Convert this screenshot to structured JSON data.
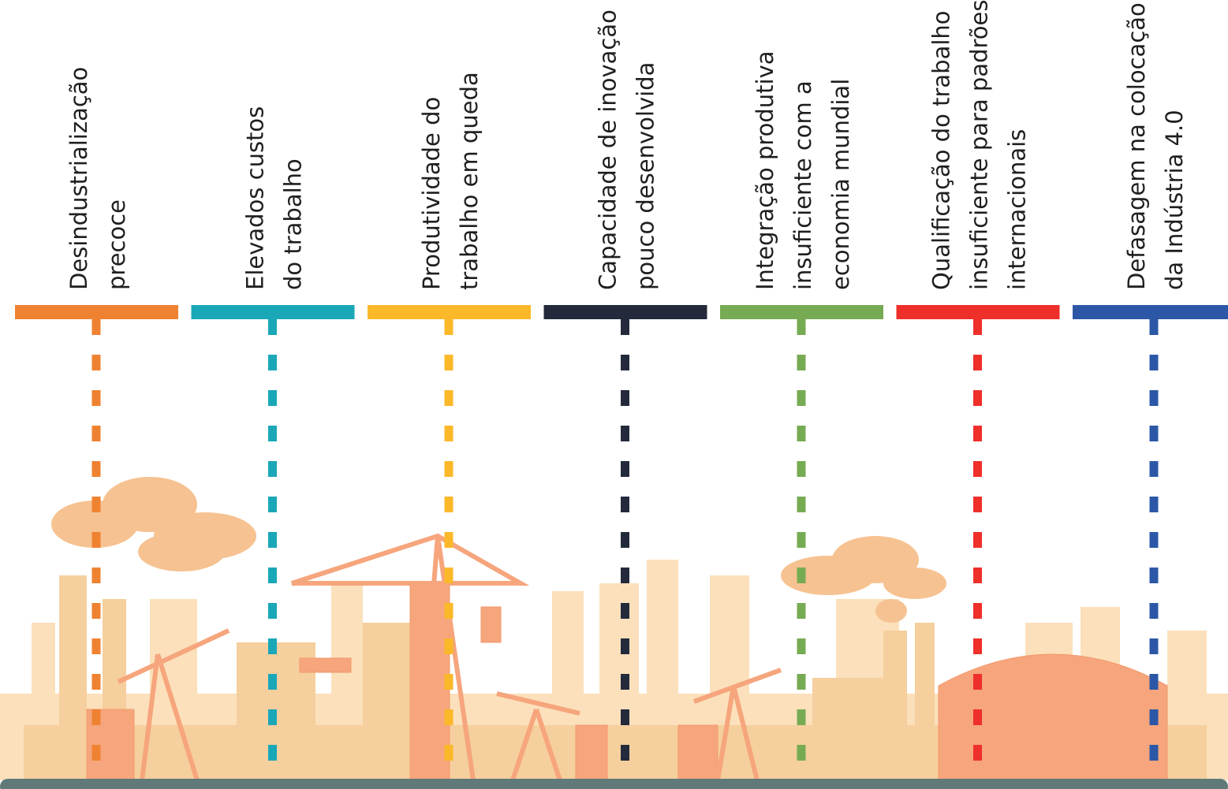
{
  "items": [
    {
      "lines": [
        "Desindustrialização",
        "precoce"
      ],
      "color": "#ef8231"
    },
    {
      "lines": [
        "Elevados custos",
        "do trabalho"
      ],
      "color": "#1aa7b8"
    },
    {
      "lines": [
        "Produtividade do",
        "trabalho em queda"
      ],
      "color": "#fbb829"
    },
    {
      "lines": [
        "Capacidade de inovação",
        "pouco desenvolvida"
      ],
      "color": "#232a3b"
    },
    {
      "lines": [
        "Integração produtiva",
        "insuficiente com a",
        "economia mundial"
      ],
      "color": "#77ab53"
    },
    {
      "lines": [
        "Qualificação do trabalho",
        "insuficiente para padrões",
        "internacionais"
      ],
      "color": "#ef2f2a"
    },
    {
      "lines": [
        "Defasagem na colocação",
        "da Indústria 4.0"
      ],
      "color": "#2b57a6"
    }
  ]
}
